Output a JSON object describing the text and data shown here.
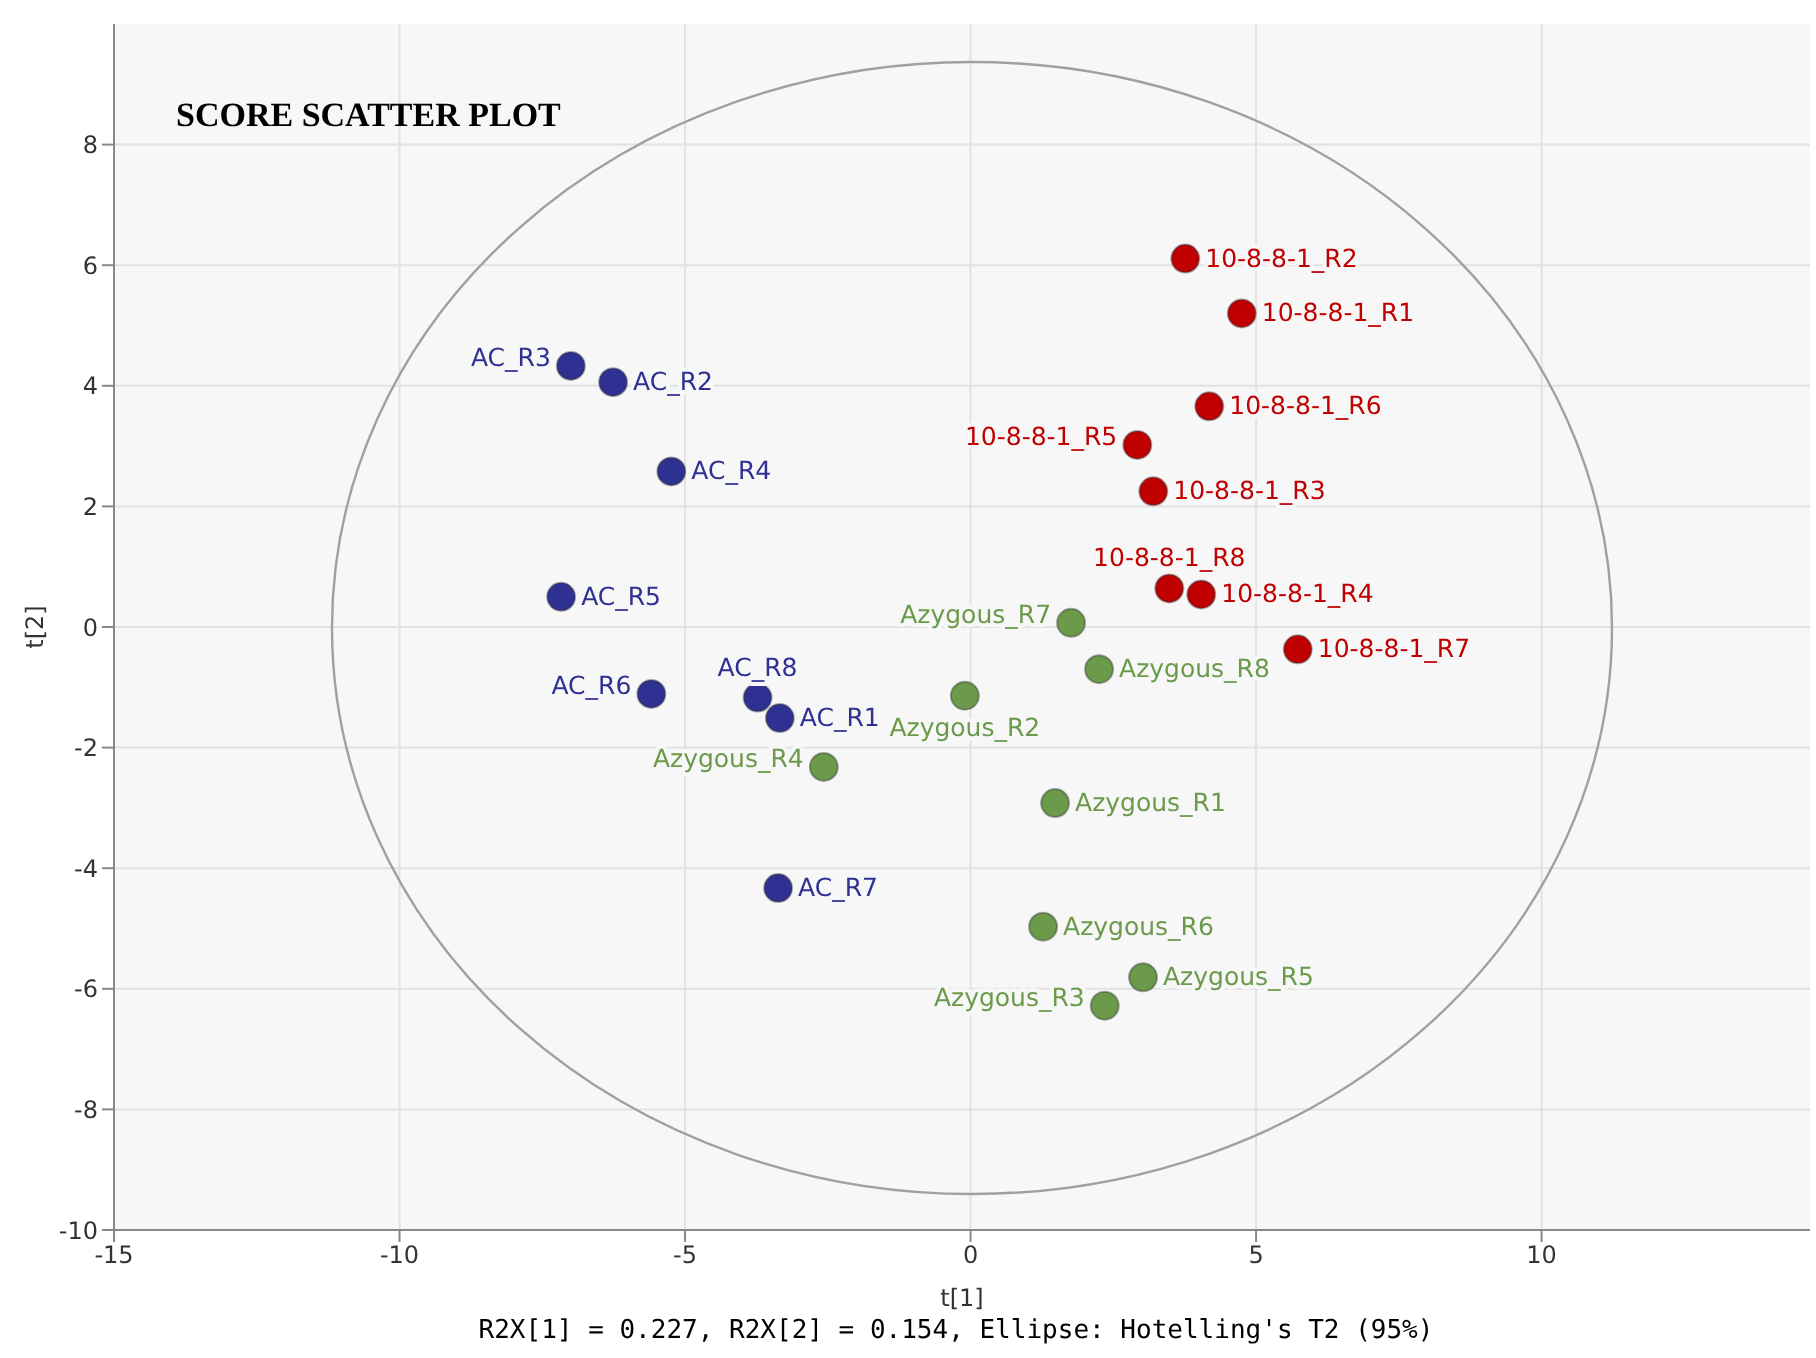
{
  "chart_data": {
    "type": "scatter",
    "title": "SCORE SCATTER PLOT",
    "xlabel": "t[1]",
    "ylabel": "t[2]",
    "xlim": [
      -15,
      14.7
    ],
    "ylim": [
      -10,
      10
    ],
    "xticks": [
      -15,
      -10,
      -5,
      0,
      5,
      10
    ],
    "yticks": [
      -10,
      -8,
      -6,
      -4,
      -2,
      0,
      2,
      4,
      6,
      8
    ],
    "grid": true,
    "marker": "circle",
    "series": [
      {
        "color": "#2e3192",
        "x": [
          -7.0,
          -6.26,
          -5.24,
          -7.17,
          -5.59,
          -3.73,
          -3.34,
          -3.37
        ],
        "values": [
          4.33,
          4.06,
          2.58,
          0.5,
          -1.11,
          -1.17,
          -1.51,
          -4.33
        ]
      },
      {
        "color": "#c00000",
        "x": [
          3.76,
          4.75,
          4.18,
          2.92,
          3.2,
          3.48,
          4.04,
          5.73
        ],
        "values": [
          6.11,
          5.2,
          3.66,
          3.02,
          2.25,
          0.64,
          0.54,
          -0.37
        ]
      },
      {
        "color": "#6a9a4a",
        "x": [
          1.76,
          2.25,
          -0.1,
          -2.57,
          1.48,
          1.27,
          3.02,
          2.35
        ],
        "values": [
          0.07,
          -0.7,
          -1.14,
          -2.32,
          -2.92,
          -4.97,
          -5.81,
          -6.28
        ]
      }
    ],
    "annotations": [
      {
        "text": "AC_R3",
        "x": -7.0,
        "y": 4.33
      },
      {
        "text": "AC_R2",
        "x": -6.26,
        "y": 4.06
      },
      {
        "text": "AC_R4",
        "x": -5.24,
        "y": 2.58
      },
      {
        "text": "AC_R5",
        "x": -7.17,
        "y": 0.5
      },
      {
        "text": "AC_R6",
        "x": -5.59,
        "y": -1.11
      },
      {
        "text": "AC_R8",
        "x": -3.73,
        "y": -1.17
      },
      {
        "text": "AC_R1",
        "x": -3.34,
        "y": -1.51
      },
      {
        "text": "AC_R7",
        "x": -3.37,
        "y": -4.33
      },
      {
        "text": "10-8-8-1_R2",
        "x": 3.76,
        "y": 6.11
      },
      {
        "text": "10-8-8-1_R1",
        "x": 4.75,
        "y": 5.2
      },
      {
        "text": "10-8-8-1_R6",
        "x": 4.18,
        "y": 3.66
      },
      {
        "text": "10-8-8-1_R5",
        "x": 2.92,
        "y": 3.02
      },
      {
        "text": "10-8-8-1_R3",
        "x": 3.2,
        "y": 2.25
      },
      {
        "text": "10-8-8-1_R8",
        "x": 3.48,
        "y": 0.64
      },
      {
        "text": "10-8-8-1_R4",
        "x": 4.04,
        "y": 0.54
      },
      {
        "text": "10-8-8-1_R7",
        "x": 5.73,
        "y": -0.37
      },
      {
        "text": "Azygous_R7",
        "x": 1.76,
        "y": 0.07
      },
      {
        "text": "Azygous_R8",
        "x": 2.25,
        "y": -0.7
      },
      {
        "text": "Azygous_R2",
        "x": -0.1,
        "y": -1.14
      },
      {
        "text": "Azygous_R4",
        "x": -2.57,
        "y": -2.32
      },
      {
        "text": "Azygous_R1",
        "x": 1.48,
        "y": -2.92
      },
      {
        "text": "Azygous_R6",
        "x": 1.27,
        "y": -4.97
      },
      {
        "text": "Azygous_R5",
        "x": 3.02,
        "y": -5.81
      },
      {
        "text": "Azygous_R3",
        "x": 2.35,
        "y": -6.28
      },
      "R2X[1] = 0.227, R2X[2] = 0.154, Ellipse: Hotelling's T2 (95%)"
    ]
  }
}
